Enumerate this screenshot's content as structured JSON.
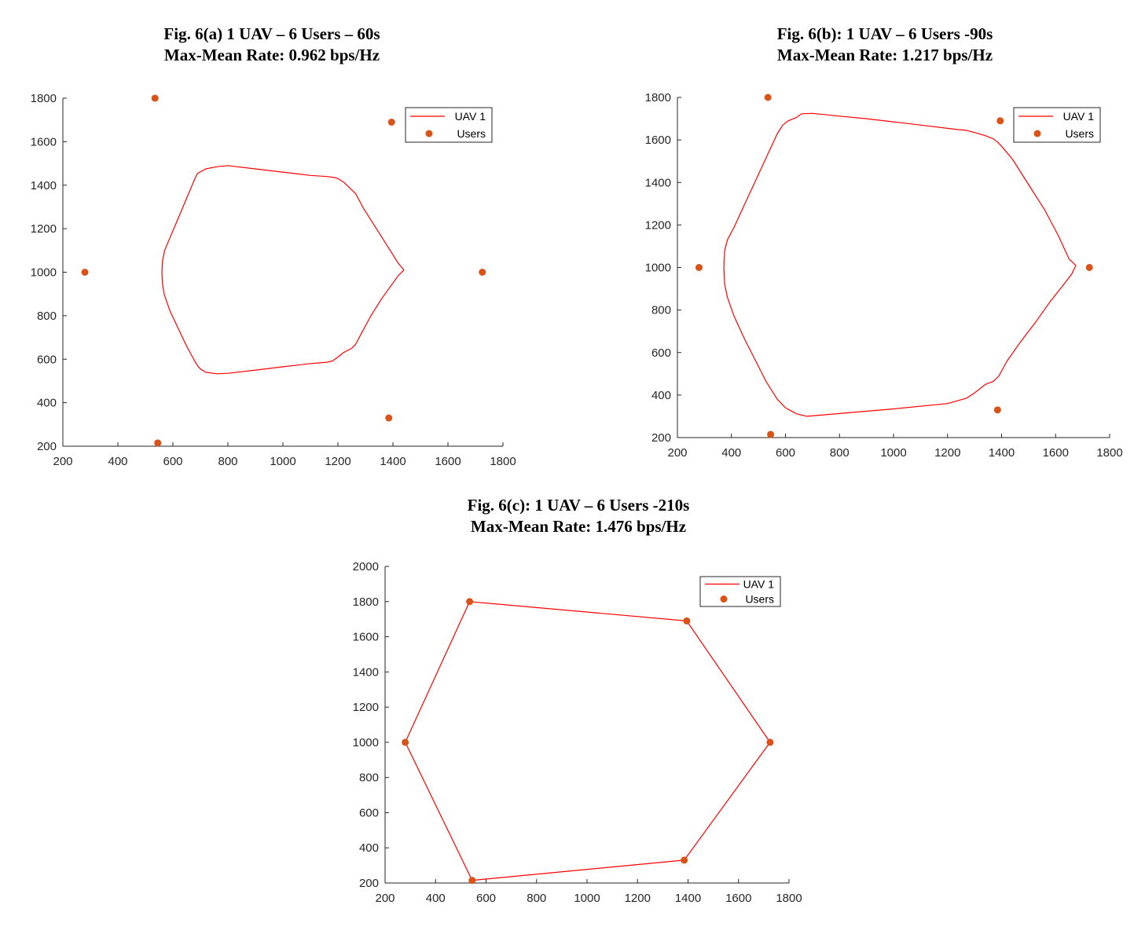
{
  "colors": {
    "uav_path": "#ff0000",
    "users": "#d95319",
    "axis": "#262626",
    "legend_border": "#262626"
  },
  "chart_data": [
    {
      "type": "line",
      "title": "Fig. 6(a) 1 UAV – 6 Users – 60s",
      "subtitle": "Max-Mean Rate: 0.962 bps/Hz",
      "xlabel": "",
      "ylabel": "",
      "xlim": [
        200,
        1800
      ],
      "ylim": [
        200,
        1800
      ],
      "xticks": [
        200,
        400,
        600,
        800,
        1000,
        1200,
        1400,
        1600,
        1800
      ],
      "yticks": [
        200,
        400,
        600,
        800,
        1000,
        1200,
        1400,
        1600,
        1800
      ],
      "grid": false,
      "legend": "top-right",
      "series": [
        {
          "name": "UAV 1",
          "kind": "line",
          "x": [
            1440,
            1420,
            1400,
            1360,
            1320,
            1290,
            1265,
            1245,
            1220,
            1200,
            1190,
            1160,
            1100,
            1000,
            900,
            800,
            760,
            720,
            690,
            680,
            670,
            650,
            630,
            610,
            590,
            570,
            562,
            560,
            562,
            568,
            590,
            620,
            650,
            680,
            690,
            700,
            720,
            760,
            800,
            900,
            1000,
            1100,
            1160,
            1180,
            1200,
            1220,
            1250,
            1265,
            1290,
            1320,
            1360,
            1400,
            1420,
            1440
          ],
          "y": [
            1010,
            1040,
            1080,
            1160,
            1240,
            1300,
            1360,
            1385,
            1415,
            1430,
            1435,
            1440,
            1445,
            1460,
            1475,
            1490,
            1485,
            1475,
            1455,
            1430,
            1400,
            1340,
            1280,
            1220,
            1160,
            1100,
            1050,
            1000,
            950,
            900,
            820,
            740,
            660,
            590,
            570,
            555,
            540,
            533,
            535,
            550,
            565,
            580,
            586,
            592,
            610,
            630,
            650,
            670,
            730,
            800,
            880,
            950,
            985,
            1010
          ]
        },
        {
          "name": "Users",
          "kind": "scatter",
          "x": [
            535,
            1395,
            280,
            1725,
            1385,
            545
          ],
          "y": [
            1800,
            1690,
            1000,
            1000,
            330,
            215
          ]
        }
      ]
    },
    {
      "type": "line",
      "title": "Fig. 6(b): 1 UAV – 6 Users -90s",
      "subtitle": "Max-Mean Rate: 1.217 bps/Hz",
      "xlabel": "",
      "ylabel": "",
      "xlim": [
        200,
        1800
      ],
      "ylim": [
        200,
        1800
      ],
      "xticks": [
        200,
        400,
        600,
        800,
        1000,
        1200,
        1400,
        1600,
        1800
      ],
      "yticks": [
        200,
        400,
        600,
        800,
        1000,
        1200,
        1400,
        1600,
        1800
      ],
      "grid": false,
      "legend": "top-right",
      "series": [
        {
          "name": "UAV 1",
          "kind": "line",
          "x": [
            1675,
            1650,
            1610,
            1560,
            1500,
            1440,
            1400,
            1385,
            1370,
            1340,
            1300,
            1270,
            1230,
            1100,
            1000,
            900,
            800,
            700,
            660,
            640,
            610,
            590,
            570,
            530,
            490,
            450,
            410,
            385,
            375,
            372,
            375,
            385,
            410,
            450,
            490,
            530,
            570,
            600,
            640,
            680,
            800,
            1000,
            1200,
            1270,
            1300,
            1330,
            1340,
            1370,
            1390,
            1420,
            1470,
            1530,
            1580,
            1630,
            1660,
            1675
          ],
          "y": [
            1010,
            1040,
            1150,
            1270,
            1390,
            1510,
            1570,
            1590,
            1605,
            1620,
            1635,
            1645,
            1650,
            1670,
            1685,
            1700,
            1712,
            1725,
            1723,
            1705,
            1690,
            1670,
            1630,
            1520,
            1410,
            1300,
            1190,
            1130,
            1080,
            1000,
            920,
            860,
            770,
            660,
            560,
            460,
            380,
            340,
            312,
            300,
            313,
            335,
            360,
            385,
            410,
            440,
            450,
            465,
            490,
            560,
            650,
            750,
            840,
            920,
            970,
            1010
          ]
        },
        {
          "name": "Users",
          "kind": "scatter",
          "x": [
            535,
            1395,
            280,
            1725,
            1385,
            545
          ],
          "y": [
            1800,
            1690,
            1000,
            1000,
            330,
            215
          ]
        }
      ]
    },
    {
      "type": "line",
      "title": "Fig. 6(c): 1 UAV – 6 Users -210s",
      "subtitle": "Max-Mean Rate: 1.476 bps/Hz",
      "xlabel": "",
      "ylabel": "",
      "xlim": [
        200,
        1800
      ],
      "ylim": [
        200,
        2000
      ],
      "xticks": [
        200,
        400,
        600,
        800,
        1000,
        1200,
        1400,
        1600,
        1800
      ],
      "yticks": [
        200,
        400,
        600,
        800,
        1000,
        1200,
        1400,
        1600,
        1800,
        2000
      ],
      "grid": false,
      "legend": "top-right",
      "series": [
        {
          "name": "UAV 1",
          "kind": "line",
          "x": [
            535,
            1395,
            1725,
            1385,
            545,
            280,
            535
          ],
          "y": [
            1800,
            1690,
            1000,
            330,
            215,
            1000,
            1800
          ]
        },
        {
          "name": "Users",
          "kind": "scatter",
          "x": [
            535,
            1395,
            280,
            1725,
            1385,
            545
          ],
          "y": [
            1800,
            1690,
            1000,
            1000,
            330,
            215
          ]
        }
      ]
    }
  ]
}
